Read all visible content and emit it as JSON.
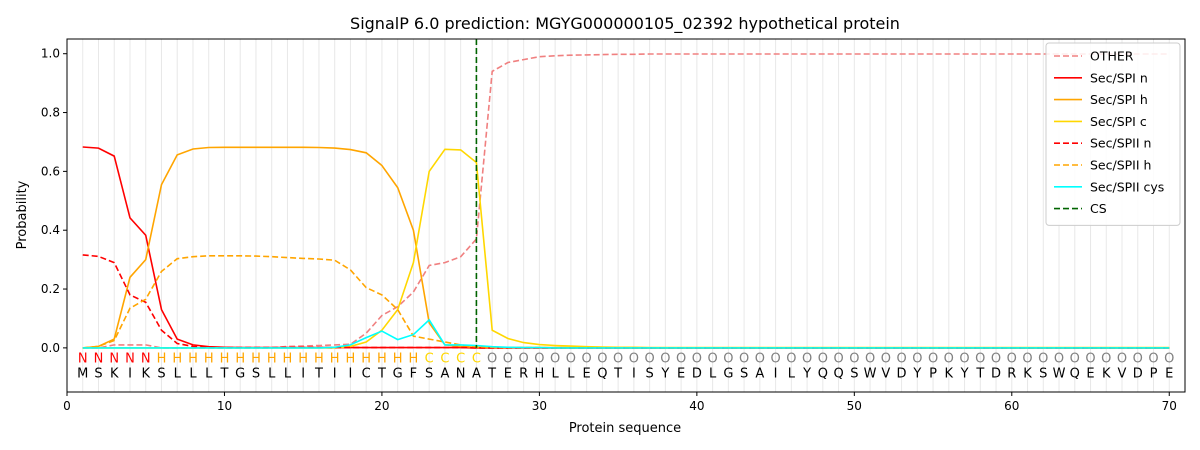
{
  "chart_data": {
    "type": "line",
    "title": "SignalP 6.0 prediction: MGYG000000105_02392 hypothetical protein",
    "xlabel": "Protein sequence",
    "ylabel": "Probability",
    "xlim": [
      0,
      71
    ],
    "ylim": [
      -0.15,
      1.05
    ],
    "x_ticks": [
      0,
      10,
      20,
      30,
      40,
      50,
      60,
      70
    ],
    "y_ticks": [
      0.0,
      0.2,
      0.4,
      0.6,
      0.8,
      1.0
    ],
    "x_tick_labels": [
      "0",
      "10",
      "20",
      "30",
      "40",
      "50",
      "60",
      "70"
    ],
    "y_tick_labels": [
      "0.0",
      "0.2",
      "0.4",
      "0.6",
      "0.8",
      "1.0"
    ],
    "legend_position": "top-right",
    "sequence": [
      "M",
      "S",
      "K",
      "I",
      "K",
      "S",
      "L",
      "L",
      "L",
      "T",
      "G",
      "S",
      "L",
      "L",
      "I",
      "T",
      "I",
      "I",
      "C",
      "T",
      "G",
      "F",
      "S",
      "A",
      "N",
      "A",
      "T",
      "E",
      "R",
      "H",
      "L",
      "L",
      "E",
      "Q",
      "T",
      "I",
      "S",
      "Y",
      "E",
      "D",
      "L",
      "G",
      "S",
      "A",
      "I",
      "L",
      "Y",
      "Q",
      "Q",
      "S",
      "W",
      "V",
      "D",
      "Y",
      "P",
      "K",
      "Y",
      "T",
      "D",
      "R",
      "K",
      "S",
      "W",
      "Q",
      "E",
      "K",
      "V",
      "D",
      "P",
      "E"
    ],
    "regions": [
      "N",
      "N",
      "N",
      "N",
      "N",
      "H",
      "H",
      "H",
      "H",
      "H",
      "H",
      "H",
      "H",
      "H",
      "H",
      "H",
      "H",
      "H",
      "H",
      "H",
      "H",
      "H",
      "C",
      "C",
      "C",
      "C",
      "O",
      "O",
      "O",
      "O",
      "O",
      "O",
      "O",
      "O",
      "O",
      "O",
      "O",
      "O",
      "O",
      "O",
      "O",
      "O",
      "O",
      "O",
      "O",
      "O",
      "O",
      "O",
      "O",
      "O",
      "O",
      "O",
      "O",
      "O",
      "O",
      "O",
      "O",
      "O",
      "O",
      "O",
      "O",
      "O",
      "O",
      "O",
      "O",
      "O",
      "O",
      "O",
      "O",
      "O"
    ],
    "region_colors": {
      "N": "#ff0000",
      "H": "#ffa500",
      "C": "#ffd700",
      "O": "#808080"
    },
    "cs_position": 26,
    "series": [
      {
        "name": "OTHER",
        "color": "#f08080",
        "dash": "dashed",
        "values": [
          0.0,
          0.0,
          0.01,
          0.01,
          0.01,
          0.0,
          0.0,
          0.0,
          0.0,
          0.0,
          0.0,
          0.0,
          0.0,
          0.005,
          0.006,
          0.008,
          0.01,
          0.012,
          0.05,
          0.11,
          0.14,
          0.19,
          0.28,
          0.29,
          0.31,
          0.37,
          0.94,
          0.97,
          0.98,
          0.99,
          0.993,
          0.995,
          0.996,
          0.997,
          0.998,
          0.998,
          0.999,
          0.999,
          0.999,
          0.999,
          0.999,
          0.999,
          0.999,
          0.999,
          0.999,
          0.999,
          0.999,
          0.999,
          0.999,
          0.999,
          0.999,
          0.999,
          0.999,
          0.999,
          0.999,
          0.999,
          0.999,
          0.999,
          0.999,
          0.999,
          0.999,
          0.999,
          0.999,
          0.999,
          0.999,
          0.999,
          0.999,
          0.999,
          0.999,
          0.999
        ]
      },
      {
        "name": "Sec/SPI n",
        "color": "#ff0000",
        "dash": "solid",
        "values": [
          0.683,
          0.679,
          0.652,
          0.442,
          0.383,
          0.13,
          0.03,
          0.01,
          0.004,
          0.002,
          0.001,
          0.001,
          0.001,
          0.001,
          0.001,
          0.001,
          0.001,
          0.001,
          0.001,
          0.001,
          0.001,
          0.001,
          0.001,
          0.001,
          0.001,
          0.0,
          0.0,
          0.0,
          0.0,
          0.0,
          0.0,
          0.0,
          0.0,
          0.0,
          0.0,
          0.0,
          0.0,
          0.0,
          0.0,
          0.0,
          0.0,
          0.0,
          0.0,
          0.0,
          0.0,
          0.0,
          0.0,
          0.0,
          0.0,
          0.0,
          0.0,
          0.0,
          0.0,
          0.0,
          0.0,
          0.0,
          0.0,
          0.0,
          0.0,
          0.0,
          0.0,
          0.0,
          0.0,
          0.0,
          0.0,
          0.0,
          0.0,
          0.0,
          0.0,
          0.0
        ]
      },
      {
        "name": "Sec/SPI h",
        "color": "#ffa500",
        "dash": "solid",
        "values": [
          0.0,
          0.005,
          0.03,
          0.24,
          0.3,
          0.555,
          0.656,
          0.676,
          0.681,
          0.682,
          0.682,
          0.682,
          0.682,
          0.682,
          0.682,
          0.681,
          0.679,
          0.674,
          0.663,
          0.62,
          0.545,
          0.4,
          0.085,
          0.01,
          0.005,
          0.002,
          0.001,
          0.001,
          0.001,
          0.001,
          0.001,
          0.001,
          0.001,
          0.001,
          0.0,
          0.0,
          0.0,
          0.0,
          0.0,
          0.0,
          0.0,
          0.0,
          0.0,
          0.0,
          0.0,
          0.0,
          0.0,
          0.0,
          0.0,
          0.0,
          0.0,
          0.0,
          0.0,
          0.0,
          0.0,
          0.0,
          0.0,
          0.0,
          0.0,
          0.0,
          0.0,
          0.0,
          0.0,
          0.0,
          0.0,
          0.0,
          0.0,
          0.0,
          0.0,
          0.0
        ]
      },
      {
        "name": "Sec/SPI c",
        "color": "#ffd700",
        "dash": "solid",
        "values": [
          0.0,
          0.0,
          0.0,
          0.0,
          0.0,
          0.0,
          0.0,
          0.0,
          0.0,
          0.0,
          0.0,
          0.0,
          0.0,
          0.0,
          0.0,
          0.0,
          0.0,
          0.005,
          0.02,
          0.06,
          0.13,
          0.29,
          0.6,
          0.675,
          0.673,
          0.63,
          0.06,
          0.032,
          0.018,
          0.011,
          0.008,
          0.006,
          0.004,
          0.003,
          0.002,
          0.002,
          0.001,
          0.001,
          0.001,
          0.001,
          0.001,
          0.001,
          0.001,
          0.001,
          0.001,
          0.001,
          0.001,
          0.001,
          0.001,
          0.001,
          0.001,
          0.001,
          0.001,
          0.001,
          0.001,
          0.001,
          0.001,
          0.001,
          0.001,
          0.001,
          0.001,
          0.001,
          0.001,
          0.001,
          0.001,
          0.001,
          0.001,
          0.001,
          0.001,
          0.001
        ]
      },
      {
        "name": "Sec/SPII n",
        "color": "#ff0000",
        "dash": "dashed",
        "values": [
          0.316,
          0.311,
          0.29,
          0.18,
          0.155,
          0.06,
          0.015,
          0.005,
          0.002,
          0.001,
          0.001,
          0.001,
          0.001,
          0.001,
          0.001,
          0.001,
          0.001,
          0.001,
          0.001,
          0.001,
          0.001,
          0.001,
          0.001,
          0.001,
          0.001,
          0.0,
          0.0,
          0.0,
          0.0,
          0.0,
          0.0,
          0.0,
          0.0,
          0.0,
          0.0,
          0.0,
          0.0,
          0.0,
          0.0,
          0.0,
          0.0,
          0.0,
          0.0,
          0.0,
          0.0,
          0.0,
          0.0,
          0.0,
          0.0,
          0.0,
          0.0,
          0.0,
          0.0,
          0.0,
          0.0,
          0.0,
          0.0,
          0.0,
          0.0,
          0.0,
          0.0,
          0.0,
          0.0,
          0.0,
          0.0,
          0.0,
          0.0,
          0.0,
          0.0,
          0.0
        ]
      },
      {
        "name": "Sec/SPII h",
        "color": "#ffa500",
        "dash": "dashed",
        "values": [
          0.0,
          0.005,
          0.025,
          0.135,
          0.165,
          0.26,
          0.303,
          0.31,
          0.313,
          0.313,
          0.313,
          0.312,
          0.31,
          0.307,
          0.304,
          0.302,
          0.298,
          0.265,
          0.205,
          0.18,
          0.13,
          0.04,
          0.03,
          0.02,
          0.01,
          0.004,
          0.002,
          0.001,
          0.001,
          0.001,
          0.0,
          0.0,
          0.0,
          0.0,
          0.0,
          0.0,
          0.0,
          0.0,
          0.0,
          0.0,
          0.0,
          0.0,
          0.0,
          0.0,
          0.0,
          0.0,
          0.0,
          0.0,
          0.0,
          0.0,
          0.0,
          0.0,
          0.0,
          0.0,
          0.0,
          0.0,
          0.0,
          0.0,
          0.0,
          0.0,
          0.0,
          0.0,
          0.0,
          0.0,
          0.0,
          0.0,
          0.0,
          0.0,
          0.0,
          0.0
        ]
      },
      {
        "name": "Sec/SPII cys",
        "color": "#00ffff",
        "dash": "solid",
        "values": [
          0.0,
          0.0,
          0.0,
          0.0,
          0.0,
          0.0,
          0.0,
          0.0,
          0.0,
          0.0,
          0.0,
          0.0,
          0.0,
          0.0,
          0.0,
          0.0,
          0.002,
          0.01,
          0.035,
          0.057,
          0.028,
          0.045,
          0.095,
          0.01,
          0.01,
          0.008,
          0.004,
          0.002,
          0.001,
          0.001,
          0.0,
          0.0,
          0.0,
          0.0,
          0.0,
          0.0,
          0.0,
          0.0,
          0.0,
          0.0,
          0.0,
          0.0,
          0.0,
          0.0,
          0.0,
          0.0,
          0.0,
          0.0,
          0.0,
          0.0,
          0.0,
          0.0,
          0.0,
          0.0,
          0.0,
          0.0,
          0.0,
          0.0,
          0.0,
          0.0,
          0.0,
          0.0,
          0.0,
          0.0,
          0.0,
          0.0,
          0.0,
          0.0,
          0.0,
          0.0
        ]
      }
    ],
    "cs_legend": {
      "name": "CS",
      "color": "#006400",
      "dash": "dashed"
    }
  }
}
